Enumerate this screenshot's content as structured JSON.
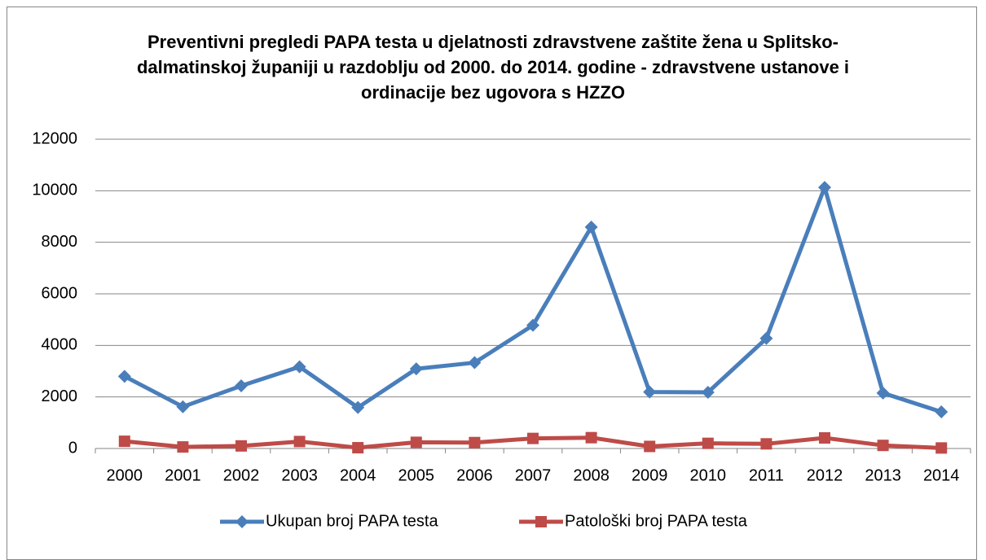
{
  "chart_data": {
    "type": "line",
    "title": "Preventivni pregledi PAPA testa u djelatnosti zdravstvene zaštite žena u Splitsko-dalmatinskoj županiji u razdoblju od 2000. do 2014. godine - zdravstvene ustanove i ordinacije bez ugovora s HZZO",
    "categories": [
      "2000",
      "2001",
      "2002",
      "2003",
      "2004",
      "2005",
      "2006",
      "2007",
      "2008",
      "2009",
      "2010",
      "2011",
      "2012",
      "2013",
      "2014"
    ],
    "series": [
      {
        "name": "Ukupan broj PAPA testa",
        "color": "#4a7ebb",
        "marker": "diamond",
        "values": [
          2800,
          1620,
          2430,
          3170,
          1590,
          3090,
          3330,
          4780,
          8590,
          2190,
          2180,
          4270,
          10130,
          2150,
          1420
        ]
      },
      {
        "name": "Patološki broj PAPA testa",
        "color": "#be4b48",
        "marker": "square",
        "values": [
          280,
          60,
          100,
          270,
          30,
          240,
          230,
          390,
          420,
          80,
          200,
          180,
          410,
          120,
          20
        ]
      }
    ],
    "ylim": [
      0,
      12000
    ],
    "yticks": [
      0,
      2000,
      4000,
      6000,
      8000,
      10000,
      12000
    ],
    "grid": true,
    "legend": "bottom"
  }
}
